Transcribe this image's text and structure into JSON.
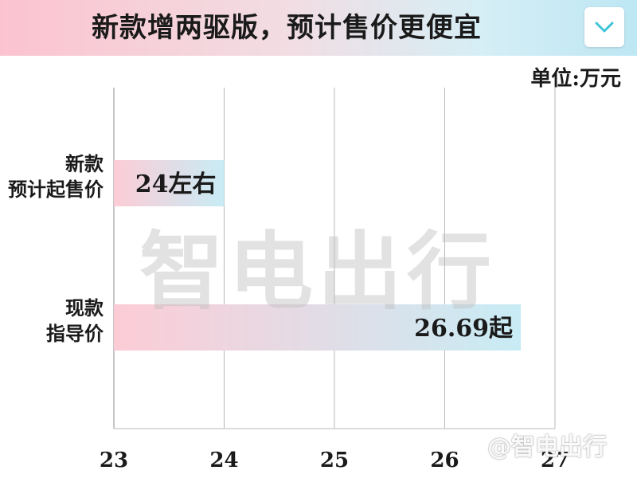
{
  "header": {
    "title": "新款增两驱版，预计售价更便宜",
    "dropdown_icon": "chevron-down-icon"
  },
  "unit_label": "单位:万元",
  "watermark": {
    "text": "智电出行",
    "small_text": "@智电出行"
  },
  "colors": {
    "bar_start": "#fcccd6",
    "bar_end": "#c8ecf5",
    "grid": "#b8b8b8",
    "bolt": "#a8e6ef"
  },
  "chart_data": {
    "type": "bar",
    "orientation": "horizontal",
    "categories": [
      [
        "新款",
        "预计起售价"
      ],
      [
        "现款",
        "指导价"
      ]
    ],
    "values": [
      24,
      26.69
    ],
    "data_labels": [
      "24左右",
      "26.69起"
    ],
    "xlim": [
      23,
      27
    ],
    "xticks": [
      "23",
      "24",
      "25",
      "26",
      "27"
    ],
    "grid": true
  }
}
